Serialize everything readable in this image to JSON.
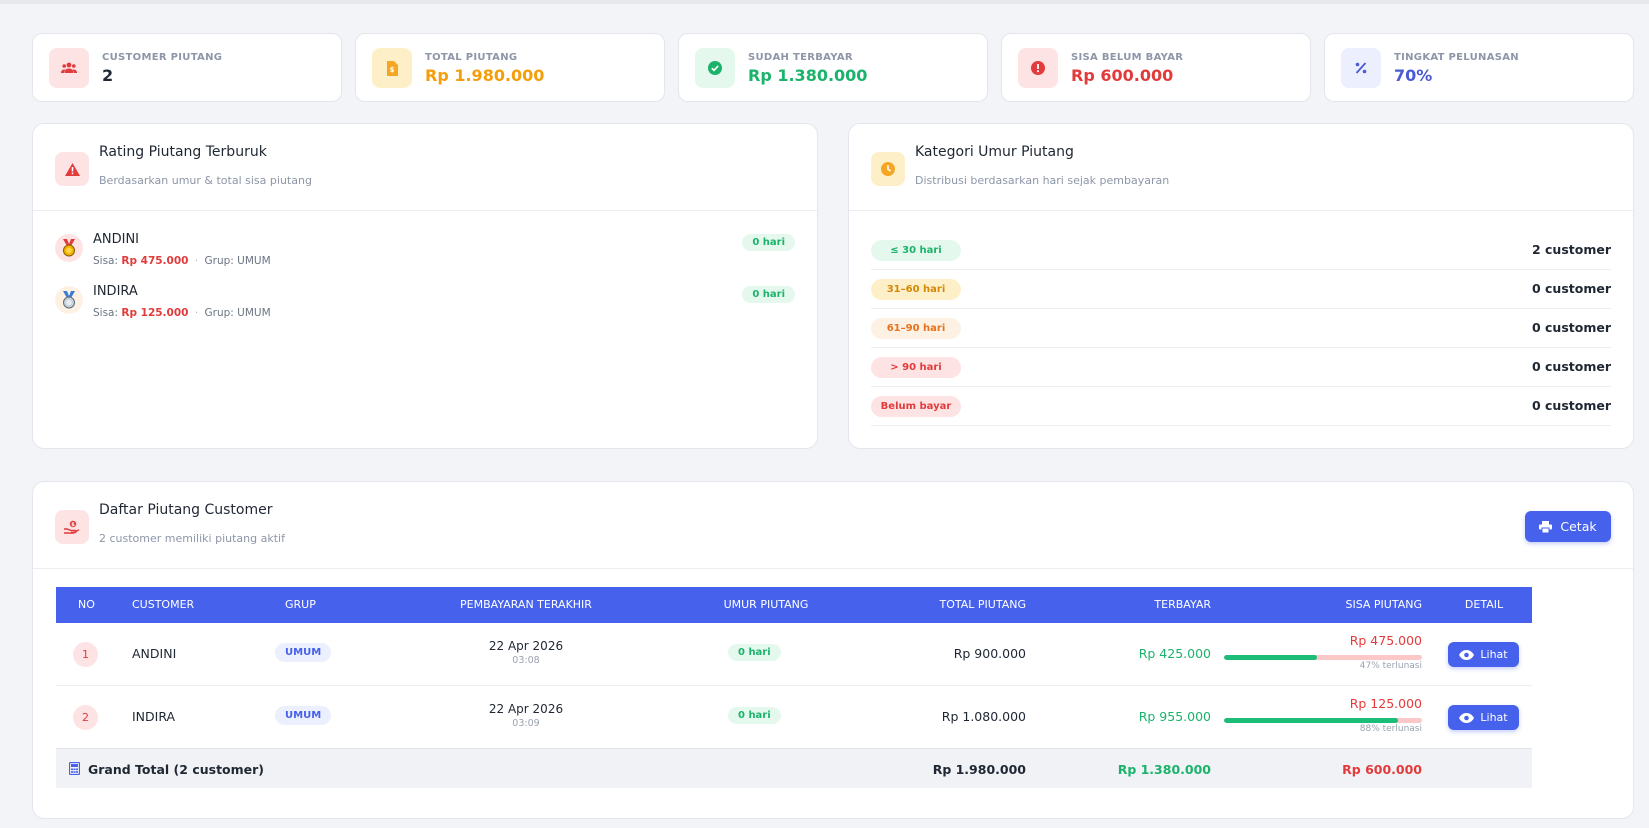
{
  "colors": {
    "accent": "#4661ec",
    "orange": "#f59e0b",
    "green": "#1bb36b",
    "red": "#e23b3b",
    "purple": "#4a5bd4"
  },
  "stats": [
    {
      "label": "CUSTOMER PIUTANG",
      "value": "2",
      "icon": "users-icon"
    },
    {
      "label": "TOTAL PIUTANG",
      "value": "Rp 1.980.000",
      "icon": "document-icon"
    },
    {
      "label": "SUDAH TERBAYAR",
      "value": "Rp 1.380.000",
      "icon": "check-circle-icon"
    },
    {
      "label": "SISA BELUM BAYAR",
      "value": "Rp 600.000",
      "icon": "alert-circle-icon"
    },
    {
      "label": "TINGKAT PELUNASAN",
      "value": "70%",
      "icon": "percent-icon"
    }
  ],
  "rating": {
    "title": "Rating Piutang Terburuk",
    "subtitle": "Berdasarkan umur & total sisa piutang",
    "items": [
      {
        "name": "ANDINI",
        "sisa_label": "Sisa:",
        "sisa": "Rp 475.000",
        "sep": "·",
        "grup": "Grup: UMUM",
        "age": "0 hari",
        "medal": "gold-medal-icon"
      },
      {
        "name": "INDIRA",
        "sisa_label": "Sisa:",
        "sisa": "Rp 125.000",
        "sep": "·",
        "grup": "Grup: UMUM",
        "age": "0 hari",
        "medal": "silver-medal-icon"
      }
    ]
  },
  "kategori": {
    "title": "Kategori Umur Piutang",
    "subtitle": "Distribusi berdasarkan hari sejak pembayaran",
    "items": [
      {
        "label": "≤ 30 hari",
        "count": "2 customer"
      },
      {
        "label": "31–60 hari",
        "count": "0 customer"
      },
      {
        "label": "61–90 hari",
        "count": "0 customer"
      },
      {
        "label": "> 90 hari",
        "count": "0 customer"
      },
      {
        "label": "Belum bayar",
        "count": "0 customer"
      }
    ]
  },
  "daftar": {
    "title": "Daftar Piutang Customer",
    "subtitle": "2 customer memiliki piutang aktif",
    "print_label": "Cetak",
    "columns": [
      "NO",
      "CUSTOMER",
      "GRUP",
      "PEMBAYARAN TERAKHIR",
      "UMUR PIUTANG",
      "TOTAL PIUTANG",
      "TERBAYAR",
      "SISA PIUTANG",
      "DETAIL"
    ],
    "rows": [
      {
        "no": "1",
        "customer": "ANDINI",
        "grup": "UMUM",
        "date": "22 Apr 2026",
        "time": "03:08",
        "age": "0 hari",
        "total": "Rp 900.000",
        "terbayar": "Rp 425.000",
        "sisa": "Rp 475.000",
        "paid_fraction": 0.47,
        "lunas": "47% terlunasi",
        "detail": "Lihat"
      },
      {
        "no": "2",
        "customer": "INDIRA",
        "grup": "UMUM",
        "date": "22 Apr 2026",
        "time": "03:09",
        "age": "0 hari",
        "total": "Rp 1.080.000",
        "terbayar": "Rp 955.000",
        "sisa": "Rp 125.000",
        "paid_fraction": 0.88,
        "lunas": "88% terlunasi",
        "detail": "Lihat"
      }
    ],
    "footer": {
      "label": "Grand Total (2 customer)",
      "total": "Rp 1.980.000",
      "terbayar": "Rp 1.380.000",
      "sisa": "Rp 600.000"
    }
  }
}
